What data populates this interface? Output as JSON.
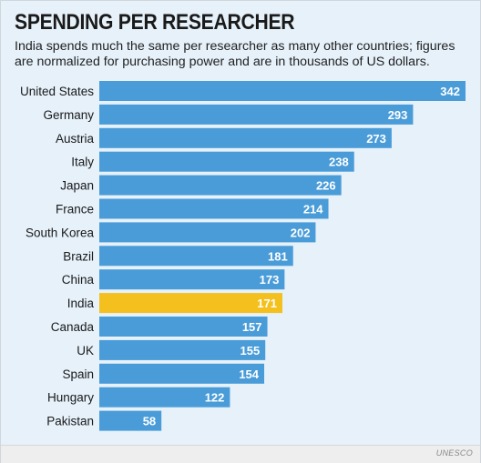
{
  "title": "SPENDING PER RESEARCHER",
  "subtitle": "India spends much the same per researcher as many other countries; figures are normalized for purchasing power and are in thousands of US dollars.",
  "source": "UNESCO",
  "colors": {
    "bar": "#4a9cd8",
    "highlight": "#f4c01e",
    "label_on_bar": "#ffffff"
  },
  "chart_data": {
    "type": "bar",
    "orientation": "horizontal",
    "categories": [
      "United States",
      "Germany",
      "Austria",
      "Italy",
      "Japan",
      "France",
      "South Korea",
      "Brazil",
      "China",
      "India",
      "Canada",
      "UK",
      "Spain",
      "Hungary",
      "Pakistan"
    ],
    "values": [
      342,
      293,
      273,
      238,
      226,
      214,
      202,
      181,
      173,
      171,
      157,
      155,
      154,
      122,
      58
    ],
    "highlight": "India",
    "xlim": [
      0,
      342
    ],
    "grid": false,
    "legend": "none"
  }
}
